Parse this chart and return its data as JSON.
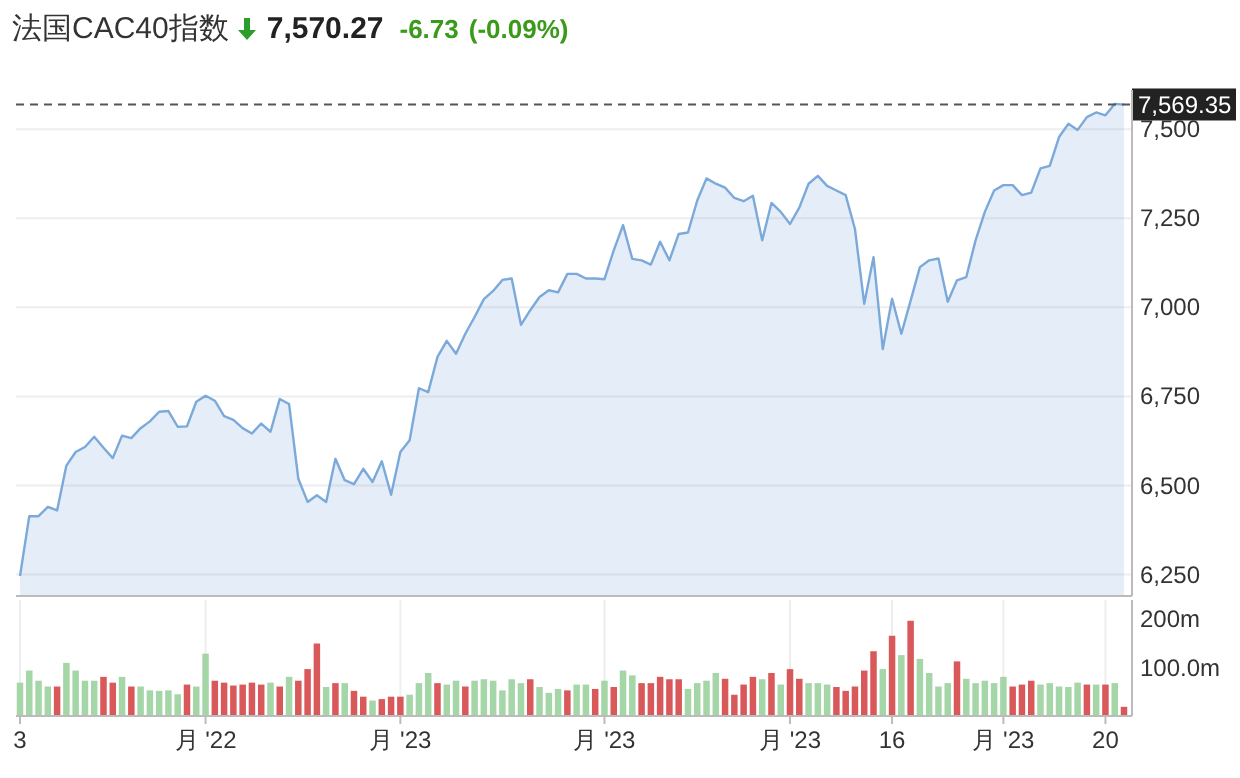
{
  "chart_data": [
    {
      "type": "area",
      "title": "法国CAC40指数",
      "annotations": [
        "7,570.27",
        "-6.73",
        "(-0.09%)"
      ],
      "categories": [
        null,
        null,
        null,
        null,
        null,
        null,
        null,
        null,
        null,
        null,
        null,
        null,
        null,
        null,
        null,
        null,
        null,
        null,
        null,
        null,
        null,
        null,
        null,
        null,
        null,
        null,
        null,
        null,
        null,
        null,
        null,
        null,
        null,
        null,
        null,
        null,
        null,
        null,
        null,
        null,
        null,
        null,
        null,
        null,
        null,
        null,
        null,
        null,
        null,
        null,
        null,
        null,
        null,
        null,
        null,
        null,
        null,
        null,
        null,
        null,
        null,
        null,
        null,
        null,
        null,
        null,
        null,
        null,
        null,
        null,
        null,
        null,
        null,
        null,
        null,
        null,
        null,
        null,
        null,
        null,
        null,
        null,
        null,
        null,
        null,
        null,
        null,
        null,
        null,
        null,
        null,
        null,
        null,
        null,
        null,
        null,
        null,
        null,
        null,
        null,
        null,
        null,
        null,
        null,
        null,
        null,
        null,
        null,
        null,
        null,
        null,
        null,
        null,
        null,
        null,
        null,
        null,
        null,
        null,
        null
      ],
      "values": [
        6246,
        6414,
        6414,
        6440,
        6430,
        6556,
        6594,
        6608,
        6637,
        6606,
        6577,
        6640,
        6633,
        6661,
        6680,
        6707,
        6709,
        6665,
        6666,
        6735,
        6752,
        6738,
        6695,
        6684,
        6661,
        6646,
        6674,
        6651,
        6743,
        6729,
        6519,
        6454,
        6473,
        6454,
        6575,
        6515,
        6504,
        6547,
        6510,
        6568,
        6474,
        6594,
        6627,
        6773,
        6762,
        6861,
        6906,
        6870,
        6926,
        6973,
        7023,
        7046,
        7077,
        7081,
        6951,
        6992,
        7029,
        7048,
        7042,
        7094,
        7094,
        7081,
        7081,
        7079,
        7160,
        7231,
        7136,
        7132,
        7120,
        7184,
        7132,
        7206,
        7210,
        7300,
        7362,
        7347,
        7336,
        7307,
        7298,
        7313,
        7188,
        7293,
        7268,
        7234,
        7280,
        7347,
        7369,
        7341,
        7328,
        7315,
        7220,
        7010,
        7141,
        6883,
        7024,
        6926,
        7019,
        7113,
        7132,
        7137,
        7016,
        7076,
        7085,
        7188,
        7268,
        7328,
        7343,
        7343,
        7315,
        7322,
        7390,
        7397,
        7478,
        7515,
        7498,
        7534,
        7547,
        7539,
        7571,
        7569
      ],
      "color": "#7ba9da",
      "ylim": [
        6190,
        7610
      ],
      "yticks": [
        {
          "value": 6250,
          "label": "6,250"
        },
        {
          "value": 6500,
          "label": "6,500"
        },
        {
          "value": 6750,
          "label": "6,750"
        },
        {
          "value": 7000,
          "label": "7,000"
        },
        {
          "value": 7250,
          "label": "7,250"
        },
        {
          "value": 7500,
          "label": "7,500"
        }
      ],
      "grid": "y",
      "tick_labels": "y",
      "ref_lines": [
        {
          "axis": "y",
          "value": 7569.35,
          "label": "7,569.35",
          "line_style": "dashed",
          "color": "#555555"
        }
      ]
    },
    {
      "type": "bar",
      "categories": [
        "3",
        null,
        null,
        null,
        null,
        null,
        null,
        null,
        null,
        null,
        null,
        null,
        null,
        null,
        null,
        null,
        null,
        null,
        null,
        null,
        "月 '22",
        null,
        null,
        null,
        null,
        null,
        null,
        null,
        null,
        null,
        null,
        null,
        null,
        null,
        null,
        null,
        null,
        null,
        null,
        null,
        null,
        "月 '23",
        null,
        null,
        null,
        null,
        null,
        null,
        null,
        null,
        null,
        null,
        null,
        null,
        null,
        null,
        null,
        null,
        null,
        null,
        null,
        null,
        null,
        "月 '23",
        null,
        null,
        null,
        null,
        null,
        null,
        null,
        null,
        null,
        null,
        null,
        null,
        null,
        null,
        null,
        null,
        null,
        null,
        null,
        "月 '23",
        null,
        null,
        null,
        null,
        null,
        null,
        null,
        null,
        null,
        null,
        "16",
        null,
        null,
        null,
        null,
        null,
        null,
        null,
        null,
        null,
        null,
        null,
        "月 '23",
        null,
        null,
        null,
        null,
        null,
        null,
        null,
        null,
        null,
        null,
        "20",
        null,
        null
      ],
      "values": [
        69,
        94,
        73,
        61,
        61,
        110,
        94,
        73,
        73,
        81,
        69,
        81,
        61,
        61,
        53,
        52,
        53,
        45,
        65,
        61,
        129,
        73,
        69,
        63,
        65,
        69,
        65,
        69,
        61,
        81,
        73,
        97,
        150,
        60,
        68,
        68,
        52,
        40,
        32,
        35,
        40,
        40,
        44,
        68,
        89,
        68,
        65,
        73,
        61,
        73,
        76,
        73,
        53,
        76,
        68,
        76,
        60,
        48,
        56,
        53,
        65,
        65,
        56,
        73,
        60,
        94,
        84,
        68,
        68,
        81,
        76,
        76,
        56,
        68,
        73,
        89,
        77,
        44,
        65,
        81,
        76,
        89,
        65,
        97,
        77,
        68,
        68,
        65,
        60,
        52,
        61,
        94,
        134,
        97,
        166,
        126,
        197,
        118,
        89,
        61,
        68,
        113,
        77,
        68,
        73,
        68,
        81,
        61,
        65,
        73,
        65,
        68,
        61,
        60,
        69,
        65,
        65,
        65,
        68,
        19
      ],
      "colors": [
        "#a5d6a7",
        "#a5d6a7",
        "#a5d6a7",
        "#a5d6a7",
        "#d9585a",
        "#a5d6a7",
        "#a5d6a7",
        "#a5d6a7",
        "#a5d6a7",
        "#d9585a",
        "#d9585a",
        "#a5d6a7",
        "#d9585a",
        "#a5d6a7",
        "#a5d6a7",
        "#a5d6a7",
        "#a5d6a7",
        "#a5d6a7",
        "#d9585a",
        "#a5d6a7",
        "#a5d6a7",
        "#d9585a",
        "#d9585a",
        "#d9585a",
        "#d9585a",
        "#d9585a",
        "#d9585a",
        "#a5d6a7",
        "#d9585a",
        "#a5d6a7",
        "#d9585a",
        "#d9585a",
        "#d9585a",
        "#a5d6a7",
        "#d9585a",
        "#a5d6a7",
        "#d9585a",
        "#d9585a",
        "#a5d6a7",
        "#d9585a",
        "#d9585a",
        "#d9585a",
        "#a5d6a7",
        "#a5d6a7",
        "#a5d6a7",
        "#d9585a",
        "#a5d6a7",
        "#a5d6a7",
        "#d9585a",
        "#a5d6a7",
        "#a5d6a7",
        "#a5d6a7",
        "#a5d6a7",
        "#a5d6a7",
        "#a5d6a7",
        "#d9585a",
        "#a5d6a7",
        "#a5d6a7",
        "#a5d6a7",
        "#d9585a",
        "#a5d6a7",
        "#a5d6a7",
        "#d9585a",
        "#a5d6a7",
        "#d9585a",
        "#a5d6a7",
        "#a5d6a7",
        "#d9585a",
        "#d9585a",
        "#d9585a",
        "#d9585a",
        "#d9585a",
        "#a5d6a7",
        "#a5d6a7",
        "#a5d6a7",
        "#a5d6a7",
        "#d9585a",
        "#d9585a",
        "#d9585a",
        "#d9585a",
        "#a5d6a7",
        "#d9585a",
        "#a5d6a7",
        "#d9585a",
        "#d9585a",
        "#a5d6a7",
        "#a5d6a7",
        "#a5d6a7",
        "#d9585a",
        "#d9585a",
        "#d9585a",
        "#d9585a",
        "#d9585a",
        "#a5d6a7",
        "#d9585a",
        "#a5d6a7",
        "#d9585a",
        "#a5d6a7",
        "#a5d6a7",
        "#a5d6a7",
        "#a5d6a7",
        "#d9585a",
        "#a5d6a7",
        "#a5d6a7",
        "#a5d6a7",
        "#a5d6a7",
        "#a5d6a7",
        "#d9585a",
        "#d9585a",
        "#d9585a",
        "#a5d6a7",
        "#a5d6a7",
        "#a5d6a7",
        "#a5d6a7",
        "#a5d6a7",
        "#d9585a",
        "#a5d6a7",
        "#d9585a",
        "#a5d6a7",
        "#d9585a"
      ],
      "ylim": [
        0,
        240
      ],
      "yticks": [
        {
          "value": 100,
          "label": "100.0m"
        },
        {
          "value": 200,
          "label": "200m"
        }
      ],
      "grid": "x"
    }
  ]
}
